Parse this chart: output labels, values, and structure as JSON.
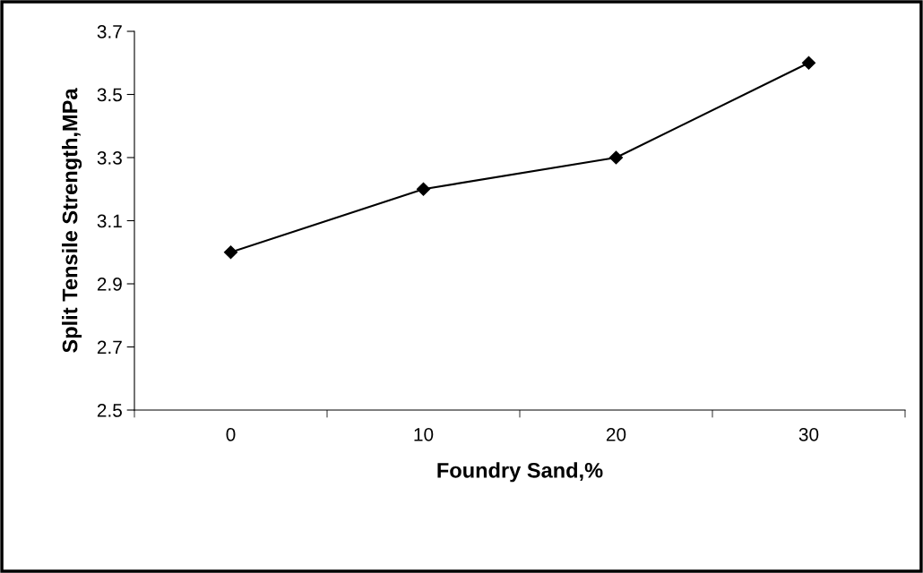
{
  "chart_data": {
    "type": "line",
    "xlabel": "Foundry Sand,%",
    "ylabel": "Split Tensile Strength,MPa",
    "categories": [
      "0",
      "10",
      "20",
      "30"
    ],
    "series": [
      {
        "color": "#000000",
        "values": [
          3.0,
          3.2,
          3.3,
          3.6
        ]
      }
    ],
    "ylim": [
      2.5,
      3.7
    ],
    "yticks": [
      2.5,
      2.7,
      2.9,
      3.1,
      3.3,
      3.5,
      3.7
    ],
    "grid": false,
    "legend": false,
    "marker": "diamond",
    "line_style": "solid"
  }
}
